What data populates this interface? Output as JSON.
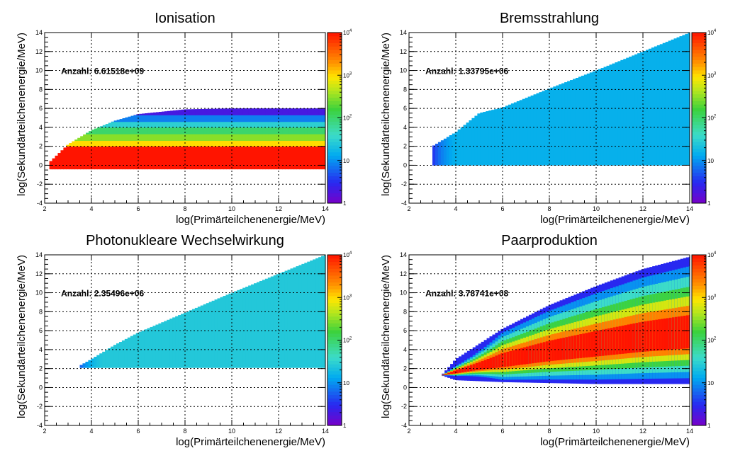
{
  "chart_data": [
    {
      "type": "heatmap",
      "title": "Ionisation",
      "xlabel": "log(Primärteilchenenergie/MeV)",
      "ylabel": "log(Sekundärteilchenenergie/MeV)",
      "xlim": [
        2,
        14
      ],
      "ylim": [
        -4,
        14
      ],
      "x_ticks": [
        "2",
        "4",
        "6",
        "8",
        "10",
        "12",
        "14"
      ],
      "y_ticks": [
        "-4",
        "-2",
        "0",
        "2",
        "4",
        "6",
        "8",
        "10",
        "12",
        "14"
      ],
      "z_scale": "log",
      "zlim": [
        1,
        10000
      ],
      "color_ticks": [
        {
          "base": "1",
          "exp": ""
        },
        {
          "base": "10",
          "exp": ""
        },
        {
          "base": "10",
          "exp": "2"
        },
        {
          "base": "10",
          "exp": "3"
        },
        {
          "base": "10",
          "exp": "4"
        }
      ],
      "grid": true,
      "stat_label": "Anzahl: 6.61518e+09",
      "region": {
        "x_start": 2.2,
        "y_min": -0.4,
        "y_max_curve": [
          [
            2.2,
            0.3
          ],
          [
            3,
            2.2
          ],
          [
            4,
            3.7
          ],
          [
            5,
            4.7
          ],
          [
            6,
            5.4
          ],
          [
            8,
            5.9
          ],
          [
            10,
            6.0
          ],
          [
            12,
            6.0
          ],
          [
            14,
            6.0
          ]
        ],
        "bands": [
          {
            "y_from": -0.4,
            "y_to": 2.0,
            "density": 10000
          },
          {
            "y_from": 2.0,
            "y_to": 2.6,
            "density": 1000
          },
          {
            "y_from": 2.6,
            "y_to": 3.3,
            "density": 300
          },
          {
            "y_from": 3.3,
            "y_to": 4.0,
            "density": 100
          },
          {
            "y_from": 4.0,
            "y_to": 4.6,
            "density": 30
          },
          {
            "y_from": 4.6,
            "y_to": 5.3,
            "density": 8
          },
          {
            "y_from": 5.3,
            "y_to": 6.0,
            "density": 2
          }
        ]
      }
    },
    {
      "type": "heatmap",
      "title": "Bremsstrahlung",
      "xlabel": "log(Primärteilchenenergie/MeV)",
      "ylabel": "log(Sekundärteilchenenergie/MeV)",
      "xlim": [
        2,
        14
      ],
      "ylim": [
        -4,
        14
      ],
      "x_ticks": [
        "2",
        "4",
        "6",
        "8",
        "10",
        "12",
        "14"
      ],
      "y_ticks": [
        "-4",
        "-2",
        "0",
        "2",
        "4",
        "6",
        "8",
        "10",
        "12",
        "14"
      ],
      "z_scale": "log",
      "zlim": [
        1,
        10000
      ],
      "color_ticks": [
        {
          "base": "1",
          "exp": ""
        },
        {
          "base": "10",
          "exp": ""
        },
        {
          "base": "10",
          "exp": "2"
        },
        {
          "base": "10",
          "exp": "3"
        },
        {
          "base": "10",
          "exp": "4"
        }
      ],
      "grid": true,
      "stat_label": "Anzahl: 1.33795e+06",
      "region": {
        "x_start": 3.0,
        "y_min": 0.0,
        "y_max_curve": [
          [
            3.0,
            2.0
          ],
          [
            4,
            3.5
          ],
          [
            5,
            5.5
          ],
          [
            6,
            6.1
          ],
          [
            8,
            8.1
          ],
          [
            10,
            10.0
          ],
          [
            12,
            12.0
          ],
          [
            14,
            14.0
          ]
        ],
        "bands": [
          {
            "y_from": 0.0,
            "y_to": 14.0,
            "density": 15
          }
        ]
      }
    },
    {
      "type": "heatmap",
      "title": "Photonukleare Wechselwirkung",
      "xlabel": "log(Primärteilchenenergie/MeV)",
      "ylabel": "log(Sekundärteilchenenergie/MeV)",
      "xlim": [
        2,
        14
      ],
      "ylim": [
        -4,
        14
      ],
      "x_ticks": [
        "2",
        "4",
        "6",
        "8",
        "10",
        "12",
        "14"
      ],
      "y_ticks": [
        "-4",
        "-2",
        "0",
        "2",
        "4",
        "6",
        "8",
        "10",
        "12",
        "14"
      ],
      "z_scale": "log",
      "zlim": [
        1,
        10000
      ],
      "color_ticks": [
        {
          "base": "1",
          "exp": ""
        },
        {
          "base": "10",
          "exp": ""
        },
        {
          "base": "10",
          "exp": "2"
        },
        {
          "base": "10",
          "exp": "3"
        },
        {
          "base": "10",
          "exp": "4"
        }
      ],
      "grid": true,
      "stat_label": "Anzahl: 2.35496e+06",
      "region": {
        "x_start": 3.5,
        "y_min": 2.1,
        "y_max_curve": [
          [
            3.5,
            2.3
          ],
          [
            4,
            3.0
          ],
          [
            5,
            4.5
          ],
          [
            6,
            5.8
          ],
          [
            8,
            7.9
          ],
          [
            10,
            10.0
          ],
          [
            12,
            12.0
          ],
          [
            14,
            14.0
          ]
        ],
        "bands": [
          {
            "y_from": 2.1,
            "y_to": 14.0,
            "density": 25
          }
        ]
      }
    },
    {
      "type": "heatmap",
      "title": "Paarproduktion",
      "xlabel": "log(Primärteilchenenergie/MeV)",
      "ylabel": "log(Sekundärteilchenenergie/MeV)",
      "xlim": [
        2,
        14
      ],
      "ylim": [
        -4,
        14
      ],
      "x_ticks": [
        "2",
        "4",
        "6",
        "8",
        "10",
        "12",
        "14"
      ],
      "y_ticks": [
        "-4",
        "-2",
        "0",
        "2",
        "4",
        "6",
        "8",
        "10",
        "12",
        "14"
      ],
      "z_scale": "log",
      "zlim": [
        1,
        10000
      ],
      "color_ticks": [
        {
          "base": "1",
          "exp": ""
        },
        {
          "base": "10",
          "exp": ""
        },
        {
          "base": "10",
          "exp": "2"
        },
        {
          "base": "10",
          "exp": "3"
        },
        {
          "base": "10",
          "exp": "4"
        }
      ],
      "grid": true,
      "stat_label": "Anzahl: 3.78741e+08",
      "region": {
        "x_start": 3.4,
        "tip_y": 1.3,
        "upper_curve": [
          [
            3.4,
            1.3
          ],
          [
            4,
            3.0
          ],
          [
            5,
            4.6
          ],
          [
            6,
            6.2
          ],
          [
            8,
            8.7
          ],
          [
            10,
            10.7
          ],
          [
            12,
            12.5
          ],
          [
            14,
            13.8
          ]
        ],
        "lower_curve": [
          [
            3.4,
            1.3
          ],
          [
            4,
            0.8
          ],
          [
            6,
            0.6
          ],
          [
            8,
            0.5
          ],
          [
            10,
            0.4
          ],
          [
            12,
            0.4
          ],
          [
            14,
            0.4
          ]
        ],
        "core_density": 10000,
        "edge_density": 3
      }
    }
  ]
}
